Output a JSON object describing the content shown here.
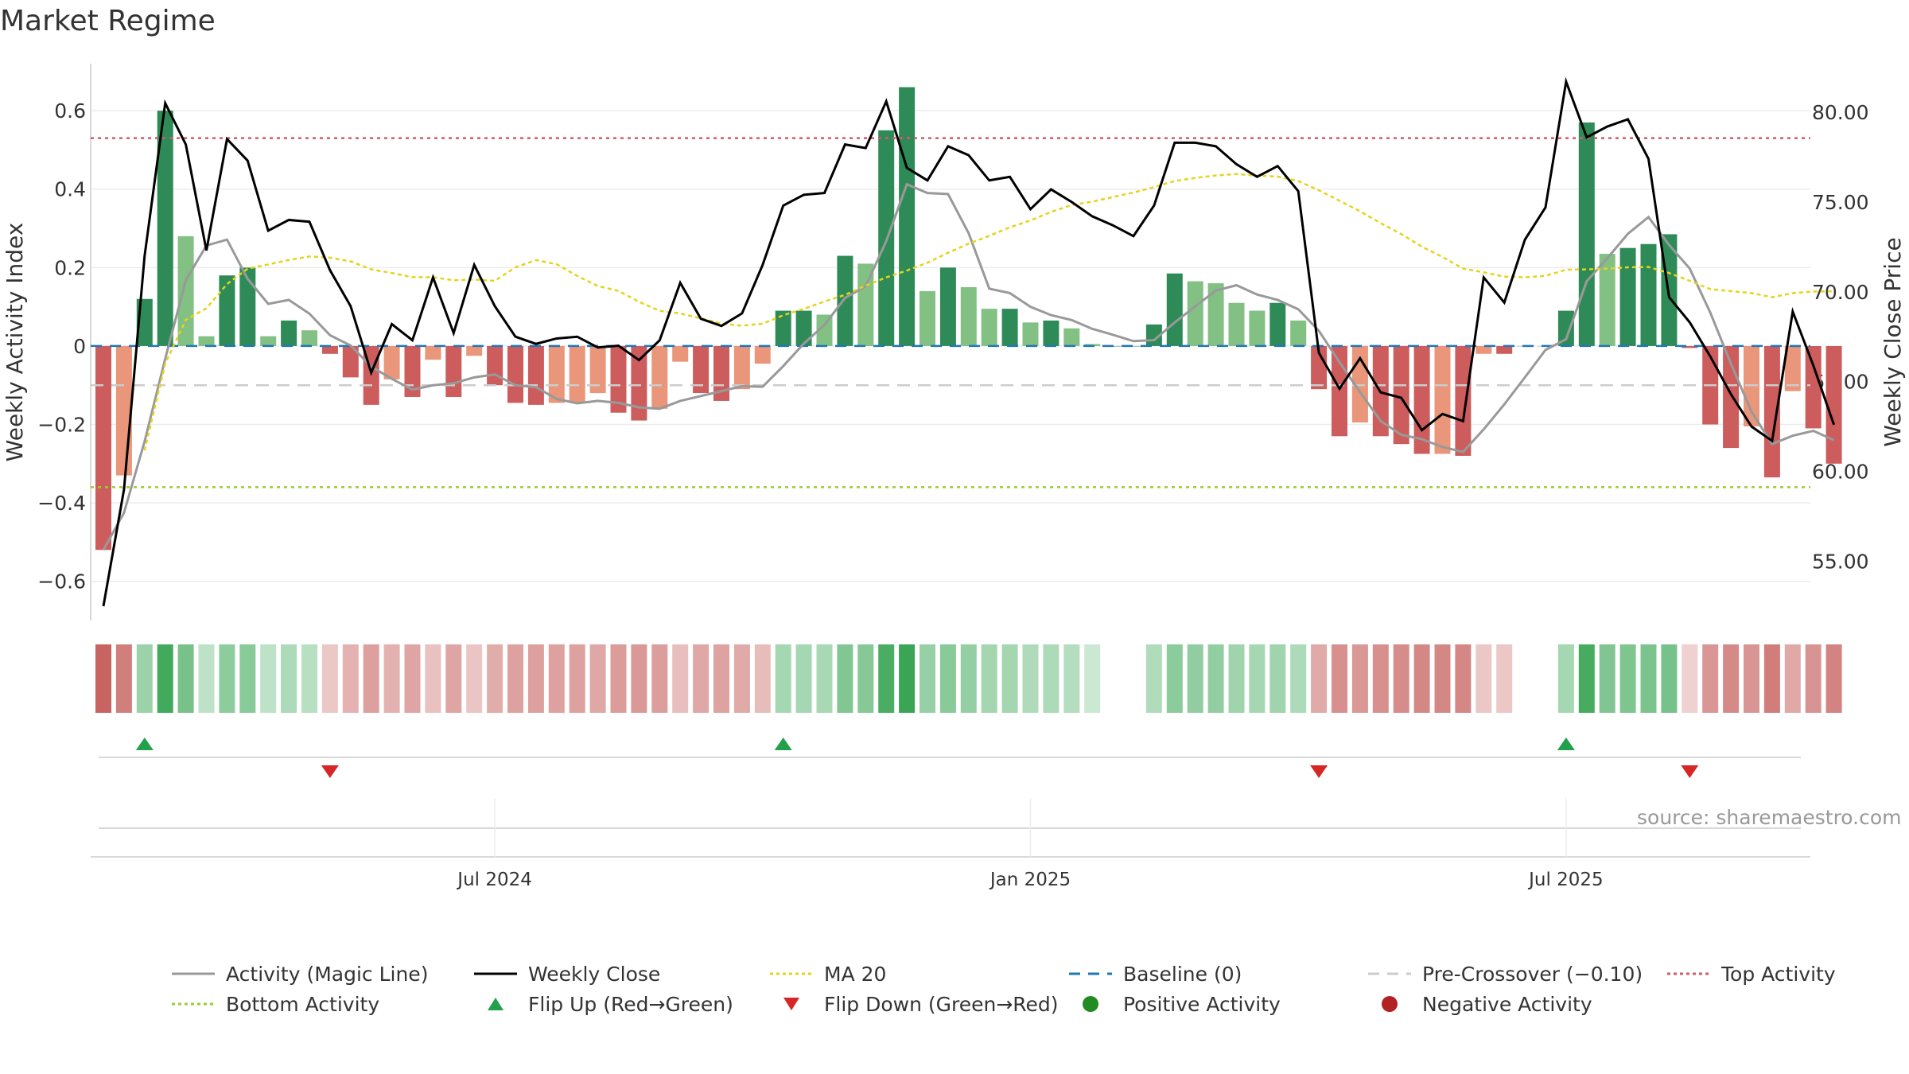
{
  "title": "Market Regime",
  "source_text": "source: sharemaestro.com",
  "colors": {
    "strong_green": "#2e8b57",
    "light_green": "#82c083",
    "strong_red": "#cd5c5c",
    "light_red": "#e9967a",
    "close_line": "#000000",
    "magic_line": "#999999",
    "ma20": "#e6d31a",
    "baseline": "#1f77b4",
    "pre_crossover": "#cccccc",
    "top_activity": "#cd5c6c",
    "bottom_activity": "#9acd32",
    "flip_up": "#22a04b",
    "flip_down": "#d62728",
    "positive_dot": "#228b22",
    "negative_dot": "#b22222"
  },
  "legend": [
    {
      "label": "Activity (Magic Line)",
      "symbol": "solid",
      "color": "#999999"
    },
    {
      "label": "Weekly Close",
      "symbol": "solid",
      "color": "#000000"
    },
    {
      "label": "MA 20",
      "symbol": "dotted",
      "color": "#e6d31a"
    },
    {
      "label": "Baseline (0)",
      "symbol": "dashed",
      "color": "#1f77b4"
    },
    {
      "label": "Pre-Crossover (−0.10)",
      "symbol": "dashed",
      "color": "#cccccc"
    },
    {
      "label": "Top Activity",
      "symbol": "dotted",
      "color": "#cd5c6c"
    },
    {
      "label": "Bottom Activity",
      "symbol": "dotted",
      "color": "#9acd32"
    },
    {
      "label": "Flip Up (Red→Green)",
      "symbol": "triangle-up",
      "color": "#22a04b"
    },
    {
      "label": "Flip Down (Green→Red)",
      "symbol": "triangle-down",
      "color": "#d62728"
    },
    {
      "label": "Positive Activity",
      "symbol": "dot",
      "color": "#228b22"
    },
    {
      "label": "Negative Activity",
      "symbol": "dot",
      "color": "#b22222"
    }
  ],
  "chart_data": {
    "type": "bar",
    "title": "Market Regime",
    "ylabel": "Weekly Activity Index",
    "y2label": "Weekly Close Price",
    "ylim": [
      -0.7,
      0.72
    ],
    "y2lim": [
      51.7,
      82.7
    ],
    "yticks": [
      "0.6",
      "0.4",
      "0.2",
      "0",
      "−0.2",
      "−0.4",
      "−0.6"
    ],
    "ytick_values": [
      0.6,
      0.4,
      0.2,
      0,
      -0.2,
      -0.4,
      -0.6
    ],
    "y2ticks": [
      "80.00",
      "75.00",
      "70.00",
      "65.00",
      "60.00",
      "55.00"
    ],
    "y2tick_values": [
      80,
      75,
      70,
      65,
      60,
      55
    ],
    "x_tick_labels": [
      "Jul 2024",
      "Jan 2025",
      "Jul 2025"
    ],
    "x_tick_weeks": [
      19,
      45,
      71
    ],
    "x_range_weeks": [
      0,
      84
    ],
    "reference_lines": {
      "baseline": 0,
      "pre_crossover": -0.1,
      "top_activity": 0.53,
      "bottom_activity": -0.36
    },
    "activity": [
      -0.52,
      -0.33,
      0.12,
      0.6,
      0.28,
      0.025,
      0.18,
      0.2,
      0.025,
      0.065,
      0.04,
      -0.02,
      -0.08,
      -0.15,
      -0.085,
      -0.13,
      -0.035,
      -0.13,
      -0.025,
      -0.1,
      -0.145,
      -0.15,
      -0.145,
      -0.145,
      -0.12,
      -0.17,
      -0.19,
      -0.16,
      -0.04,
      -0.12,
      -0.14,
      -0.11,
      -0.045,
      0.09,
      0.09,
      0.08,
      0.23,
      0.21,
      0.55,
      0.66,
      0.14,
      0.2,
      0.15,
      0.095,
      0.095,
      0.06,
      0.065,
      0.045,
      0.005,
      0,
      0,
      0.055,
      0.185,
      0.165,
      0.16,
      0.11,
      0.09,
      0.11,
      0.065,
      -0.11,
      -0.23,
      -0.195,
      -0.23,
      -0.25,
      -0.275,
      -0.275,
      -0.28,
      -0.02,
      -0.02,
      0,
      0,
      0.09,
      0.57,
      0.235,
      0.25,
      0.26,
      0.285,
      -0.005,
      -0.2,
      -0.26,
      -0.205,
      -0.335,
      -0.115,
      -0.21,
      -0.3
    ],
    "bar_strength": [
      "strong",
      "light",
      "strong",
      "strong",
      "light",
      "light",
      "strong",
      "strong",
      "light",
      "strong",
      "light",
      "strong",
      "strong",
      "strong",
      "light",
      "strong",
      "light",
      "strong",
      "light",
      "strong",
      "strong",
      "strong",
      "light",
      "light",
      "light",
      "strong",
      "strong",
      "light",
      "light",
      "strong",
      "strong",
      "light",
      "light",
      "strong",
      "strong",
      "light",
      "strong",
      "light",
      "strong",
      "strong",
      "light",
      "strong",
      "light",
      "light",
      "strong",
      "light",
      "strong",
      "light",
      "light",
      "strong",
      "strong",
      "strong",
      "strong",
      "light",
      "light",
      "light",
      "light",
      "strong",
      "light",
      "strong",
      "strong",
      "light",
      "strong",
      "strong",
      "strong",
      "light",
      "strong",
      "light",
      "strong",
      "light",
      "light",
      "strong",
      "strong",
      "light",
      "strong",
      "strong",
      "strong",
      "strong",
      "strong",
      "strong",
      "light",
      "strong",
      "light",
      "strong",
      "strong"
    ],
    "weekly_close": [
      52.5,
      59,
      72,
      80.5,
      78.2,
      72.3,
      78.5,
      77.3,
      73.4,
      74,
      73.9,
      71.2,
      69.2,
      65.5,
      68.2,
      67.3,
      70.8,
      67.7,
      71.5,
      69.2,
      67.5,
      67.1,
      67.4,
      67.5,
      66.9,
      67,
      66.2,
      67.3,
      70.5,
      68.5,
      68.1,
      68.8,
      71.5,
      74.8,
      75.4,
      75.5,
      78.2,
      78,
      80.6,
      76.9,
      76.2,
      78.1,
      77.6,
      76.2,
      76.4,
      74.6,
      75.7,
      75,
      74.2,
      73.7,
      73.1,
      74.8,
      78.3,
      78.3,
      78.1,
      77.1,
      76.4,
      77,
      75.6,
      66.6,
      64.6,
      66.3,
      64.4,
      64.1,
      62.3,
      63.2,
      62.8,
      70.8,
      69.4,
      72.9,
      74.7,
      81.7,
      78.6,
      79.2,
      79.6,
      77.4,
      69.7,
      68.3,
      66.4,
      64.3,
      62.5,
      61.7,
      68.9,
      65.9,
      62.6
    ]
  }
}
